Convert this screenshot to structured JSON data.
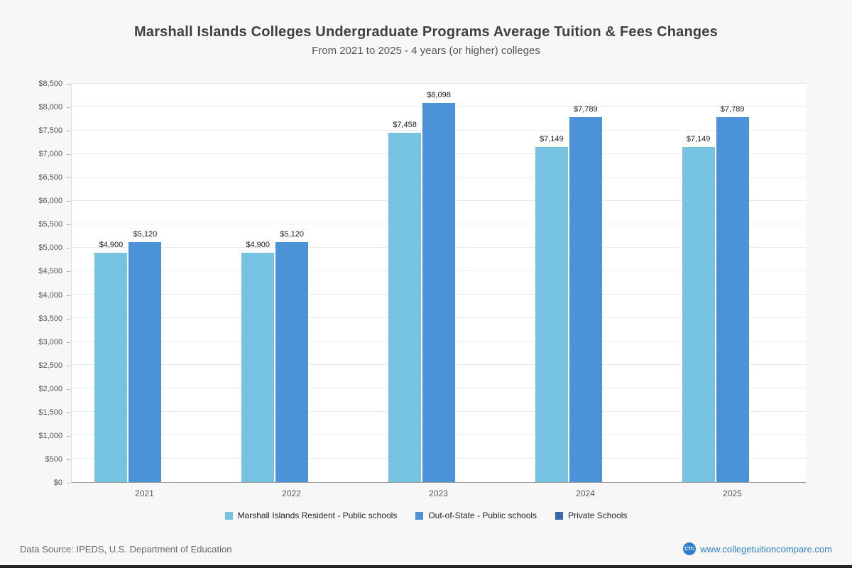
{
  "chart_data": {
    "type": "bar",
    "title": "Marshall Islands Colleges Undergraduate Programs Average Tuition & Fees Changes",
    "subtitle": "From 2021 to 2025 - 4 years (or higher) colleges",
    "categories": [
      "2021",
      "2022",
      "2023",
      "2024",
      "2025"
    ],
    "series": [
      {
        "name": "Marshall Islands Resident - Public schools",
        "color": "#75c3e1",
        "values": [
          4900,
          4900,
          7458,
          7149,
          7149
        ]
      },
      {
        "name": "Out-of-State - Public schools",
        "color": "#4b92d8",
        "values": [
          5120,
          5120,
          8098,
          7789,
          7789
        ]
      },
      {
        "name": "Private Schools",
        "color": "#3a67ad",
        "values": [
          null,
          null,
          null,
          null,
          null
        ]
      }
    ],
    "ylim": [
      0,
      8500
    ],
    "ytick_step": 500,
    "value_prefix": "$",
    "grid": true,
    "legend_position": "bottom"
  },
  "footer": {
    "data_source": "Data Source: IPEDS, U.S. Department of Education",
    "website": "www.collegetuitioncompare.com",
    "logo_text": "CTC"
  }
}
